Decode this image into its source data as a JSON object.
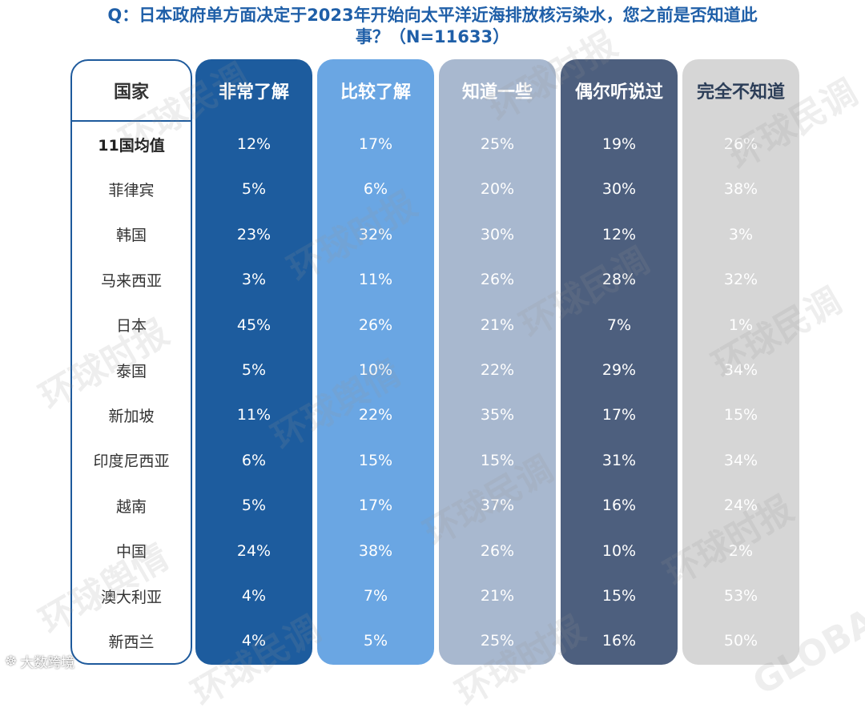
{
  "title_line1": "Q：日本政府单方面决定于2023年开始向太平洋近海排放核污染水，您之前是否知道此",
  "title_line2": "事？（N=11633）",
  "country_header": "国家",
  "watermarks": [
    "环球民调",
    "环球时报",
    "环球舆情",
    "GLOBAL TIMES"
  ],
  "footer": "大数跨境",
  "colors": {
    "col1": "#1d5c9e",
    "col2": "#6aa6e3",
    "col3": "#a8b8cf",
    "col4": "#4d5f7e",
    "col5": "#d6d6d6"
  },
  "chart_data": {
    "type": "table",
    "title": "Q：日本政府单方面决定于2023年开始向太平洋近海排放核污染水，您之前是否知道此事？（N=11633）",
    "columns": [
      "非常了解",
      "比较了解",
      "知道一些",
      "偶尔听说过",
      "完全不知道"
    ],
    "rows": [
      {
        "country": "11国均值",
        "values": [
          "12%",
          "17%",
          "25%",
          "19%",
          "26%"
        ]
      },
      {
        "country": "菲律宾",
        "values": [
          "5%",
          "6%",
          "20%",
          "30%",
          "38%"
        ]
      },
      {
        "country": "韩国",
        "values": [
          "23%",
          "32%",
          "30%",
          "12%",
          "3%"
        ]
      },
      {
        "country": "马来西亚",
        "values": [
          "3%",
          "11%",
          "26%",
          "28%",
          "32%"
        ]
      },
      {
        "country": "日本",
        "values": [
          "45%",
          "26%",
          "21%",
          "7%",
          "1%"
        ]
      },
      {
        "country": "泰国",
        "values": [
          "5%",
          "10%",
          "22%",
          "29%",
          "34%"
        ]
      },
      {
        "country": "新加坡",
        "values": [
          "11%",
          "22%",
          "35%",
          "17%",
          "15%"
        ]
      },
      {
        "country": "印度尼西亚",
        "values": [
          "6%",
          "15%",
          "15%",
          "31%",
          "34%"
        ]
      },
      {
        "country": "越南",
        "values": [
          "5%",
          "17%",
          "37%",
          "16%",
          "24%"
        ]
      },
      {
        "country": "中国",
        "values": [
          "24%",
          "38%",
          "26%",
          "10%",
          "2%"
        ]
      },
      {
        "country": "澳大利亚",
        "values": [
          "4%",
          "7%",
          "21%",
          "15%",
          "53%"
        ]
      },
      {
        "country": "新西兰",
        "values": [
          "4%",
          "5%",
          "25%",
          "16%",
          "50%"
        ]
      }
    ]
  }
}
